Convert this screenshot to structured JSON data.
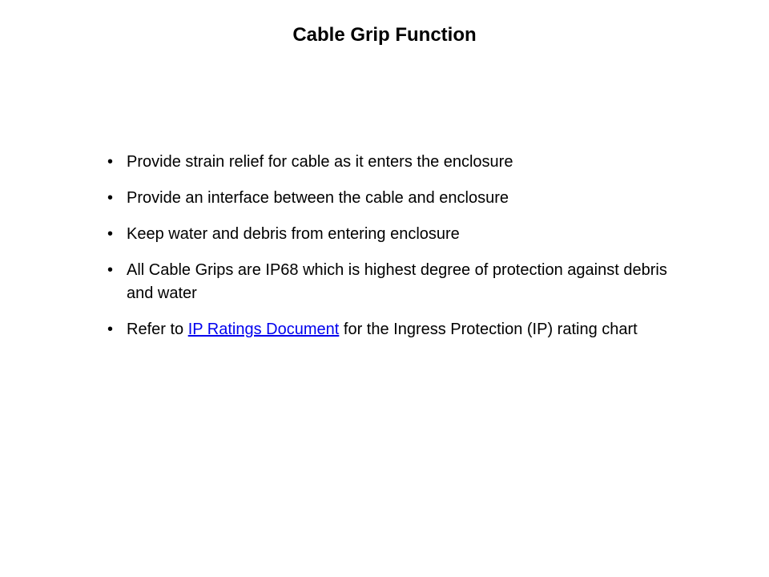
{
  "title": "Cable Grip Function",
  "bullets": [
    {
      "text": "Provide strain relief for cable as it enters the enclosure"
    },
    {
      "text": "Provide an interface between the cable and enclosure"
    },
    {
      "text": "Keep water and debris from entering enclosure"
    },
    {
      "text": "All Cable Grips are IP68 which is highest degree of protection against debris and water"
    },
    {
      "prefix": "Refer to ",
      "link_text": "IP Ratings Document",
      "suffix": " for the Ingress Protection (IP) rating chart"
    }
  ],
  "colors": {
    "background": "#ffffff",
    "text": "#000000",
    "link": "#0000ee"
  },
  "typography": {
    "title_fontsize": 24,
    "title_weight": "bold",
    "body_fontsize": 20,
    "font_family": "Verdana, Geneva, sans-serif"
  }
}
